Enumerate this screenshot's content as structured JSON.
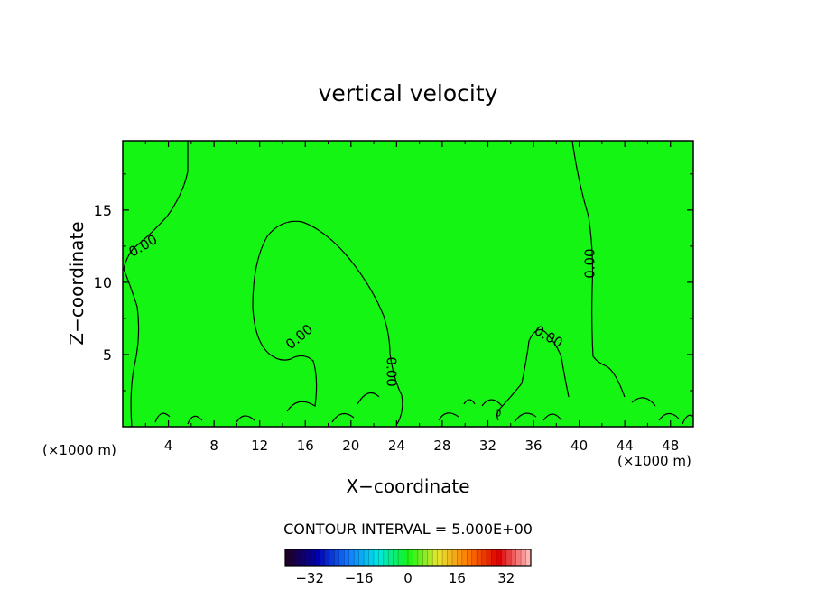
{
  "chart_data": {
    "type": "heatmap",
    "title": "vertical velocity",
    "xlabel": "X−coordinate",
    "ylabel": "Z−coordinate",
    "x_unit_left": "(×1000 m)",
    "x_unit_right": "(×1000 m)",
    "xlim": [
      0,
      50
    ],
    "ylim": [
      0,
      19.8
    ],
    "x_ticks": [
      4,
      8,
      12,
      16,
      20,
      24,
      28,
      32,
      36,
      40,
      44,
      48
    ],
    "x_tick_labels": [
      "4",
      "8",
      "12",
      "16",
      "20",
      "24",
      "28",
      "32",
      "36",
      "40",
      "44",
      "48"
    ],
    "y_ticks": [
      5,
      10,
      15
    ],
    "y_tick_labels": [
      "5",
      "10",
      "15"
    ],
    "field_color": "#14f514",
    "contour_interval_text": "CONTOUR INTERVAL = 5.000E+00",
    "contour_labels": [
      {
        "text": "0.00",
        "x": 1.8,
        "y": 12.5,
        "angle": -30
      },
      {
        "text": "0.00",
        "x": 15.5,
        "y": 6.2,
        "angle": -40
      },
      {
        "text": "0.00",
        "x": 23.5,
        "y": 3.8,
        "angle": 90
      },
      {
        "text": "0.00",
        "x": 37.3,
        "y": 6.2,
        "angle": 30
      },
      {
        "text": "0.00",
        "x": 41.0,
        "y": 11.3,
        "angle": -90
      },
      {
        "text": "0",
        "x": 32.9,
        "y": 0.9,
        "angle": 0
      }
    ],
    "colorbar": {
      "range": [
        -40,
        40
      ],
      "ticks": [
        -32,
        -16,
        0,
        16,
        32
      ],
      "tick_labels": [
        "−32",
        "−16",
        "0",
        "16",
        "32"
      ],
      "segments": 50,
      "colors": [
        "#20002a",
        "#0000b4",
        "#1478ff",
        "#00e6e6",
        "#14f514",
        "#e6e632",
        "#ff7800",
        "#dc0000",
        "#ffb4b4"
      ]
    }
  }
}
